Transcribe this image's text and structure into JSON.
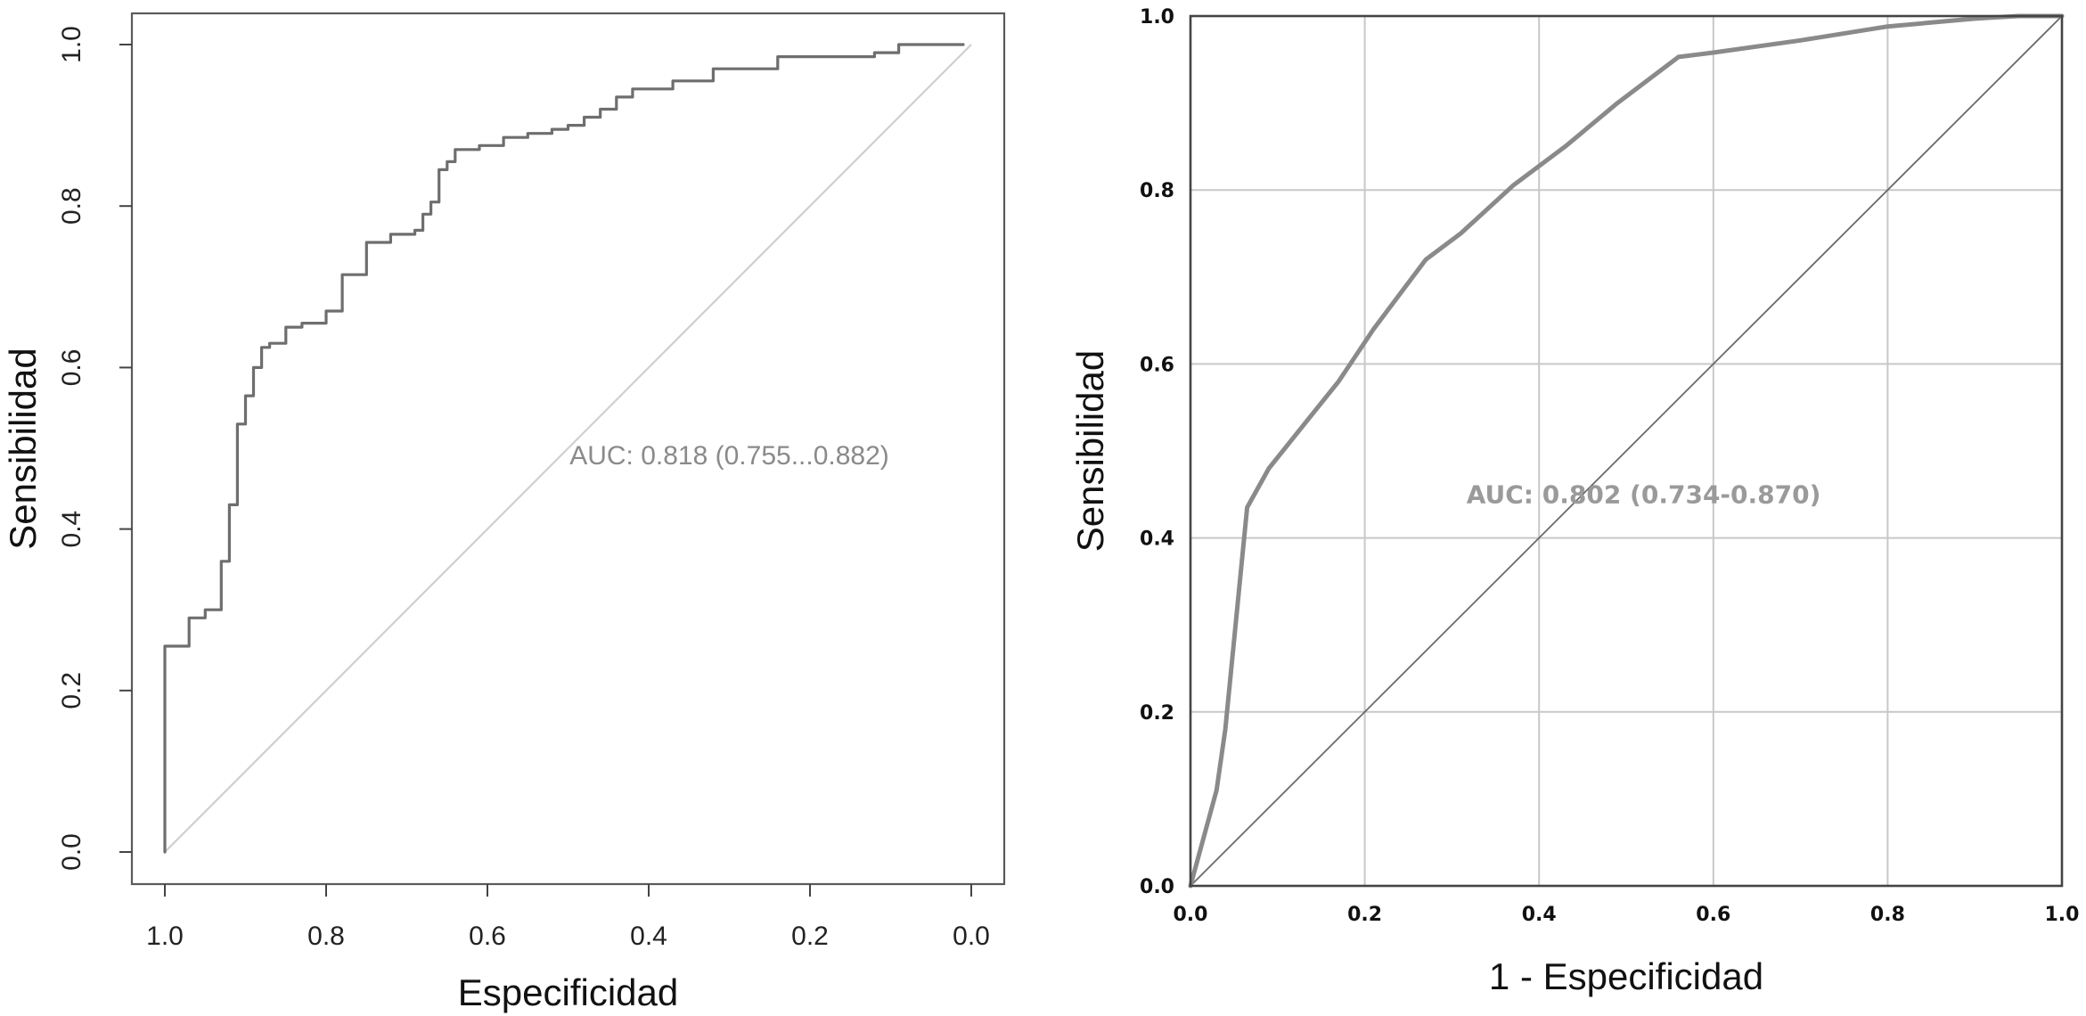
{
  "chart_data": [
    {
      "type": "line",
      "xlabel": "Especificidad",
      "ylabel": "Sensibilidad",
      "xlim": [
        1.0,
        0.0
      ],
      "ylim": [
        0.0,
        1.0
      ],
      "x_reversed": true,
      "grid": false,
      "xticks": [
        1.0,
        0.8,
        0.6,
        0.4,
        0.2,
        0.0
      ],
      "xtick_labels": [
        "1.0",
        "0.8",
        "0.6",
        "0.4",
        "0.2",
        "0.0"
      ],
      "yticks": [
        0.0,
        0.2,
        0.4,
        0.6,
        0.8,
        1.0
      ],
      "ytick_labels": [
        "0.0",
        "0.2",
        "0.4",
        "0.6",
        "0.8",
        "1.0"
      ],
      "annotations": [
        {
          "text": "AUC: 0.818 (0.755...0.882)",
          "x": 0.3,
          "y": 0.48
        }
      ],
      "reference_line": {
        "x": [
          1.0,
          0.0
        ],
        "y": [
          0.0,
          1.0
        ],
        "color": "#cfcfcf"
      },
      "series": [
        {
          "color": "#6e6e6e",
          "x": [
            1.0,
            1.0,
            0.97,
            0.97,
            0.95,
            0.95,
            0.93,
            0.93,
            0.92,
            0.92,
            0.91,
            0.91,
            0.9,
            0.9,
            0.89,
            0.89,
            0.88,
            0.88,
            0.87,
            0.87,
            0.85,
            0.85,
            0.83,
            0.83,
            0.8,
            0.8,
            0.78,
            0.78,
            0.75,
            0.75,
            0.72,
            0.72,
            0.69,
            0.69,
            0.68,
            0.68,
            0.67,
            0.67,
            0.66,
            0.66,
            0.65,
            0.65,
            0.64,
            0.64,
            0.61,
            0.61,
            0.58,
            0.58,
            0.55,
            0.55,
            0.52,
            0.52,
            0.5,
            0.5,
            0.48,
            0.48,
            0.46,
            0.46,
            0.44,
            0.44,
            0.42,
            0.42,
            0.37,
            0.37,
            0.32,
            0.32,
            0.24,
            0.24,
            0.12,
            0.12,
            0.09,
            0.09,
            0.01
          ],
          "y": [
            0.0,
            0.255,
            0.255,
            0.29,
            0.29,
            0.3,
            0.3,
            0.36,
            0.36,
            0.43,
            0.43,
            0.53,
            0.53,
            0.565,
            0.565,
            0.6,
            0.6,
            0.625,
            0.625,
            0.63,
            0.63,
            0.65,
            0.65,
            0.655,
            0.655,
            0.67,
            0.67,
            0.715,
            0.715,
            0.755,
            0.755,
            0.765,
            0.765,
            0.77,
            0.77,
            0.79,
            0.79,
            0.805,
            0.805,
            0.845,
            0.845,
            0.855,
            0.855,
            0.87,
            0.87,
            0.875,
            0.875,
            0.885,
            0.885,
            0.89,
            0.89,
            0.895,
            0.895,
            0.9,
            0.9,
            0.91,
            0.91,
            0.92,
            0.92,
            0.935,
            0.935,
            0.945,
            0.945,
            0.955,
            0.955,
            0.97,
            0.97,
            0.985,
            0.985,
            0.99,
            0.99,
            1.0,
            1.0
          ]
        }
      ]
    },
    {
      "type": "line",
      "xlabel": "1 - Especificidad",
      "ylabel": "Sensibilidad",
      "xlim": [
        0.0,
        1.0
      ],
      "ylim": [
        0.0,
        1.0
      ],
      "grid": true,
      "xticks": [
        0.0,
        0.2,
        0.4,
        0.6,
        0.8,
        1.0
      ],
      "xtick_labels": [
        "0.0",
        "0.2",
        "0.4",
        "0.6",
        "0.8",
        "1.0"
      ],
      "yticks": [
        0.0,
        0.2,
        0.4,
        0.6,
        0.8,
        1.0
      ],
      "ytick_labels": [
        "0.0",
        "0.2",
        "0.4",
        "0.6",
        "0.8",
        "1.0"
      ],
      "annotations": [
        {
          "text": "AUC: 0.802 (0.734-0.870)",
          "x": 0.52,
          "y": 0.44
        }
      ],
      "reference_line": {
        "x": [
          0.0,
          1.0
        ],
        "y": [
          0.0,
          1.0
        ],
        "color": "#6a6a6a"
      },
      "series": [
        {
          "color": "#8a8a8a",
          "x": [
            0.0,
            0.03,
            0.04,
            0.065,
            0.09,
            0.13,
            0.17,
            0.21,
            0.27,
            0.31,
            0.37,
            0.43,
            0.49,
            0.56,
            0.6,
            0.7,
            0.8,
            0.9,
            0.95,
            1.0
          ],
          "y": [
            0.0,
            0.11,
            0.18,
            0.435,
            0.48,
            0.53,
            0.58,
            0.64,
            0.72,
            0.75,
            0.805,
            0.85,
            0.9,
            0.953,
            0.958,
            0.972,
            0.988,
            0.997,
            1.0,
            1.0
          ]
        }
      ]
    }
  ]
}
